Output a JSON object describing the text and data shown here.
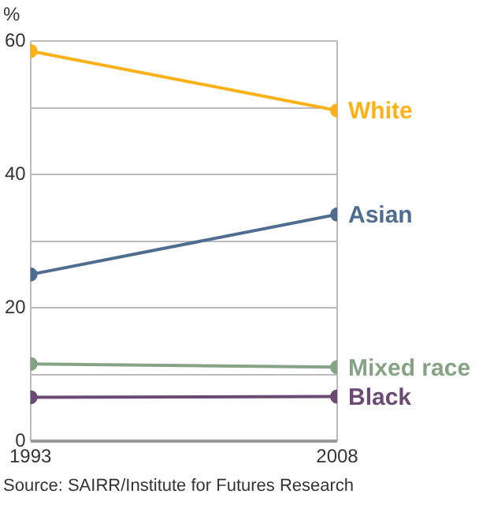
{
  "chart_data": {
    "type": "line",
    "ylabel": "%",
    "annotations": [
      "Source: SAIRR/Institute for Futures Research"
    ],
    "x": [
      1993,
      2008
    ],
    "xlim": [
      1993,
      2008
    ],
    "xticks": [
      1993,
      2008
    ],
    "ylim": [
      0,
      60
    ],
    "yticks": [
      0,
      {
        "value": 10,
        "label": null
      },
      20,
      {
        "value": 30,
        "label": null
      },
      40,
      {
        "value": 50,
        "label": null
      },
      60
    ],
    "grid": true,
    "legend": false,
    "marker": "circle",
    "line_style": "solid",
    "series": [
      {
        "name": "White",
        "color": "#fbb117",
        "values": [
          58.5,
          49.6
        ]
      },
      {
        "name": "Asian",
        "color": "#4e6d8f",
        "values": [
          25,
          34
        ]
      },
      {
        "name": "Mixed race",
        "color": "#86a385",
        "values": [
          11.6,
          11.1
        ]
      },
      {
        "name": "Black",
        "color": "#6b4a73",
        "values": [
          6.6,
          6.7
        ]
      }
    ]
  }
}
